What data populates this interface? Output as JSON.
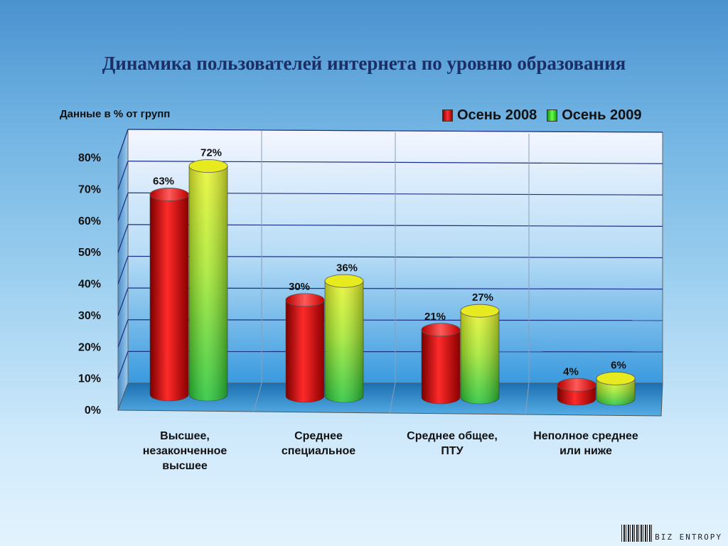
{
  "title": "Динамика пользователей интернета по уровню образования",
  "unit_label": "Данные в  %  от групп",
  "legend": [
    {
      "label": "Осень 2008",
      "color": "#e81a1a"
    },
    {
      "label": "Осень 2009",
      "color": "#33cc33"
    }
  ],
  "logo_text": "BIZ ENTROPY",
  "chart_data": {
    "type": "bar",
    "categories": [
      "Высшее,\nнезаконченное\nвысшее",
      "Среднее\nспециальное",
      "Среднее общее,\nПТУ",
      "Неполное среднее\nили ниже"
    ],
    "series": [
      {
        "name": "Осень 2008",
        "values": [
          63,
          30,
          21,
          4
        ]
      },
      {
        "name": "Осень 2009",
        "values": [
          72,
          36,
          27,
          6
        ]
      }
    ],
    "value_labels": [
      [
        "63%",
        "30%",
        "21%",
        "4%"
      ],
      [
        "72%",
        "36%",
        "27%",
        "6%"
      ]
    ],
    "yticks": [
      "0%",
      "10%",
      "20%",
      "30%",
      "40%",
      "50%",
      "60%",
      "70%",
      "80%"
    ],
    "ylim": [
      0,
      80
    ],
    "grid": true,
    "legend_position": "top-right"
  }
}
